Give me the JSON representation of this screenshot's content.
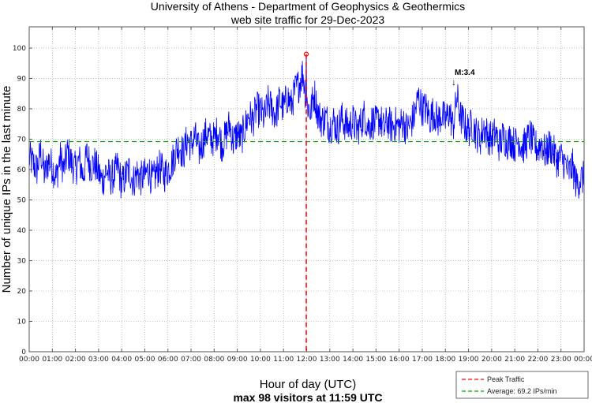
{
  "chart_data": {
    "type": "line",
    "title": [
      "University of Athens - Department of Geophysics & Geothermics",
      "web site traffic for 29-Dec-2023"
    ],
    "xlabel": "Hour of day (UTC)",
    "subtitle": "max 98 visitors at 11:59 UTC",
    "ylabel": "Number of unique IPs in the last minute",
    "xlim": [
      0,
      24
    ],
    "ylim": [
      0,
      107
    ],
    "grid": true,
    "x_ticks": [
      "00:00",
      "01:00",
      "02:00",
      "03:00",
      "04:00",
      "05:00",
      "06:00",
      "07:00",
      "08:00",
      "09:00",
      "10:00",
      "11:00",
      "12:00",
      "13:00",
      "14:00",
      "15:00",
      "16:00",
      "17:00",
      "18:00",
      "19:00",
      "20:00",
      "21:00",
      "22:00",
      "23:00",
      "00:00"
    ],
    "y_ticks": [
      0,
      10,
      20,
      30,
      40,
      50,
      60,
      70,
      80,
      90,
      100
    ],
    "sample_interval_minutes": 10,
    "series": [
      {
        "name": "traffic",
        "color": "#0000ff",
        "values": [
          64,
          62,
          60,
          66,
          58,
          63,
          61,
          57,
          64,
          60,
          66,
          62,
          60,
          63,
          58,
          65,
          61,
          62,
          59,
          56,
          60,
          57,
          58,
          61,
          55,
          58,
          60,
          56,
          59,
          57,
          58,
          60,
          56,
          59,
          61,
          58,
          60,
          62,
          66,
          68,
          65,
          70,
          68,
          71,
          66,
          69,
          72,
          70,
          70,
          73,
          68,
          71,
          75,
          69,
          72,
          70,
          74,
          78,
          76,
          80,
          79,
          77,
          82,
          80,
          78,
          83,
          80,
          84,
          81,
          86,
          88,
          92,
          82,
          79,
          85,
          78,
          76,
          77,
          74,
          76,
          73,
          77,
          75,
          74,
          76,
          73,
          75,
          78,
          74,
          76,
          75,
          77,
          73,
          76,
          74,
          75,
          74,
          76,
          73,
          75,
          78,
          84,
          80,
          80,
          77,
          79,
          76,
          78,
          76,
          79,
          74,
          84,
          77,
          75,
          73,
          75,
          72,
          70,
          74,
          71,
          70,
          72,
          68,
          71,
          69,
          70,
          68,
          70,
          67,
          69,
          71,
          68,
          67,
          69,
          65,
          68,
          66,
          63,
          64,
          62,
          59,
          61,
          55,
          57
        ]
      }
    ],
    "peak": {
      "label": "Peak Traffic",
      "hour": 11.983,
      "value": 98,
      "color": "#ff0000"
    },
    "average": {
      "label": "Average: 69.2 IPs/min",
      "value": 69.2,
      "color": "#00aa00"
    },
    "annotation": {
      "text": "M:3.4",
      "hour": 18.4,
      "arrow": "↓"
    },
    "legend_position": "bottom-right"
  }
}
